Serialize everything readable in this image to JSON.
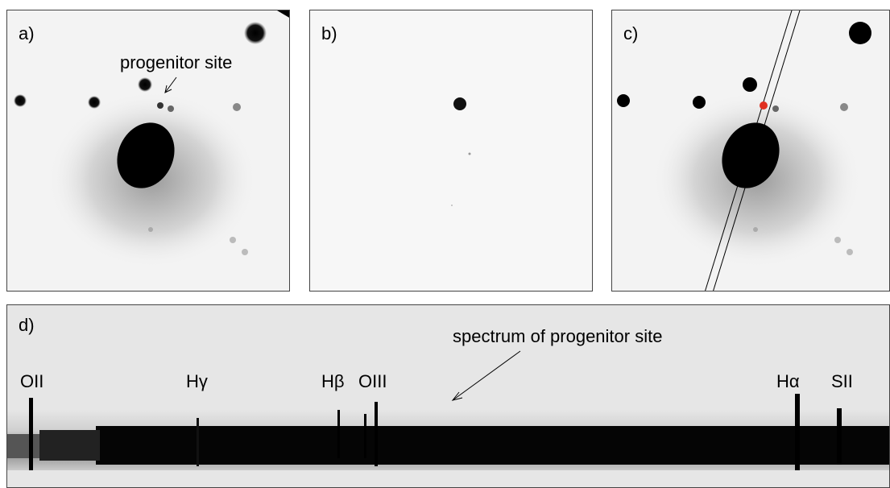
{
  "panels": {
    "a": {
      "label": "a)",
      "annotation": "progenitor site"
    },
    "b": {
      "label": "b)"
    },
    "c": {
      "label": "c)",
      "marker_color": "#e03020"
    },
    "d": {
      "label": "d)",
      "annotation": "spectrum of progenitor site",
      "lines": [
        {
          "id": "oii",
          "label": "OII"
        },
        {
          "id": "hgamma",
          "label": "Hγ"
        },
        {
          "id": "hbeta",
          "label": "Hβ"
        },
        {
          "id": "oiii",
          "label": "OIII"
        },
        {
          "id": "halpha",
          "label": "Hα"
        },
        {
          "id": "sii",
          "label": "SII"
        }
      ]
    }
  }
}
